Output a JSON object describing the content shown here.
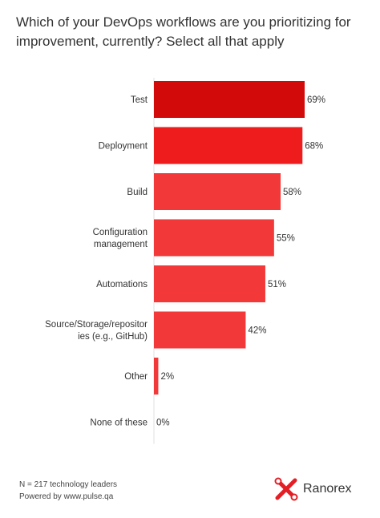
{
  "title": "Which of your DevOps workflows are you prioritizing for improvement, currently? Select all that apply",
  "chart_data": {
    "type": "bar",
    "orientation": "horizontal",
    "title": "Which of your DevOps workflows are you prioritizing for improvement, currently? Select all that apply",
    "categories": [
      [
        "Test"
      ],
      [
        "Deployment"
      ],
      [
        "Build"
      ],
      [
        "Configuration",
        "management"
      ],
      [
        "Automations"
      ],
      [
        "Source/Storage/repositor",
        "ies (e.g., GitHub)"
      ],
      [
        "Other"
      ],
      [
        "None of these"
      ]
    ],
    "values": [
      69,
      68,
      58,
      55,
      51,
      42,
      2,
      0
    ],
    "value_labels": [
      "69%",
      "68%",
      "58%",
      "55%",
      "51%",
      "42%",
      "2%",
      "0%"
    ],
    "unit": "%",
    "xlim": [
      0,
      69
    ],
    "grid": false,
    "legend": "none",
    "colors": [
      "#D20A0A",
      "#EE1C1C",
      "#F23838",
      "#F23838",
      "#F23838",
      "#F23838",
      "#F23838",
      "#F23838"
    ]
  },
  "footer": {
    "line1": "N = 217 technology leaders",
    "line2": "Powered by www.pulse.qa"
  },
  "logo": {
    "name": "Ranorex",
    "icon": "ranorex-x-icon",
    "color": "#E31E24"
  }
}
